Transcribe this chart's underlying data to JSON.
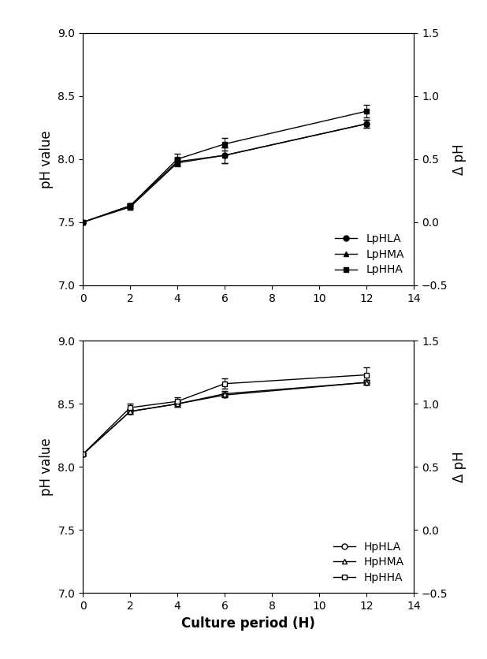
{
  "top": {
    "x": [
      0,
      2,
      4,
      6,
      12
    ],
    "series": [
      {
        "key": "LpHLA",
        "y": [
          7.5,
          7.63,
          7.98,
          8.03,
          8.28
        ],
        "err": [
          0.01,
          0.02,
          0.03,
          0.06,
          0.03
        ],
        "marker": "o",
        "filled": true,
        "label": "LpHLA"
      },
      {
        "key": "LpHMA",
        "y": [
          7.5,
          7.62,
          7.97,
          8.03,
          8.28
        ],
        "err": [
          0.01,
          0.02,
          0.03,
          0.06,
          0.03
        ],
        "marker": "^",
        "filled": true,
        "label": "LpHMA"
      },
      {
        "key": "LpHHA",
        "y": [
          7.5,
          7.63,
          8.0,
          8.12,
          8.38
        ],
        "err": [
          0.01,
          0.02,
          0.04,
          0.05,
          0.05
        ],
        "marker": "s",
        "filled": true,
        "label": "LpHHA"
      }
    ],
    "ylim": [
      7.0,
      9.0
    ],
    "ylabel": "pH value",
    "right_ylabel": "Δ pH",
    "right_ylim": [
      -0.5,
      1.5
    ],
    "right_yticks": [
      -0.5,
      0.0,
      0.5,
      1.0,
      1.5
    ]
  },
  "bottom": {
    "x": [
      0,
      2,
      4,
      6,
      12
    ],
    "series": [
      {
        "key": "HpHLA",
        "y": [
          8.1,
          8.44,
          8.5,
          8.57,
          8.67
        ],
        "err": [
          0.01,
          0.02,
          0.02,
          0.02,
          0.02
        ],
        "marker": "o",
        "filled": false,
        "label": "HpHLA"
      },
      {
        "key": "HpHMA",
        "y": [
          8.1,
          8.44,
          8.5,
          8.58,
          8.67
        ],
        "err": [
          0.01,
          0.02,
          0.02,
          0.02,
          0.02
        ],
        "marker": "^",
        "filled": false,
        "label": "HpHMA"
      },
      {
        "key": "HpHHA",
        "y": [
          8.1,
          8.47,
          8.52,
          8.66,
          8.73
        ],
        "err": [
          0.01,
          0.03,
          0.03,
          0.04,
          0.06
        ],
        "marker": "s",
        "filled": false,
        "label": "HpHHA"
      }
    ],
    "ylim": [
      7.0,
      9.0
    ],
    "ylabel": "pH value",
    "xlabel": "Culture period (H)",
    "right_ylabel": "Δ pH",
    "right_ylim": [
      -0.5,
      1.5
    ],
    "right_yticks": [
      -0.5,
      0.0,
      0.5,
      1.0,
      1.5
    ]
  },
  "xlim": [
    0,
    14
  ],
  "xticks": [
    0,
    2,
    4,
    6,
    8,
    10,
    12,
    14
  ],
  "yticks": [
    7.0,
    7.5,
    8.0,
    8.5,
    9.0
  ],
  "line_color": "#000000",
  "marker_size": 5,
  "linewidth": 1.0,
  "capsize": 3,
  "elinewidth": 0.8,
  "legend_fontsize": 10,
  "axis_label_fontsize": 12,
  "tick_fontsize": 10,
  "background_color": "#ffffff"
}
